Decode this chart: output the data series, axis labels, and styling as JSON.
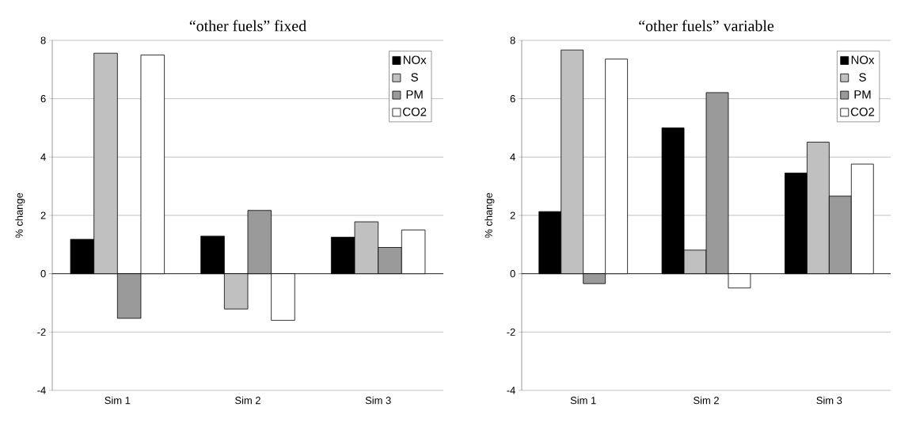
{
  "chart_data": [
    {
      "type": "bar",
      "title": "“other fuels” fixed",
      "ylabel": "% change",
      "categories": [
        "Sim 1",
        "Sim 2",
        "Sim 3"
      ],
      "series": [
        {
          "name": "NOx",
          "color": "#000000",
          "values": [
            1.18,
            1.29,
            1.25
          ]
        },
        {
          "name": "S",
          "color": "#c0c0c0",
          "values": [
            7.56,
            -1.21,
            1.78
          ]
        },
        {
          "name": "PM",
          "color": "#9a9a9a",
          "values": [
            -1.53,
            2.17,
            0.9
          ]
        },
        {
          "name": "CO2",
          "color": "#ffffff",
          "values": [
            7.5,
            -1.6,
            1.5
          ]
        }
      ],
      "ylim": [
        -4,
        8
      ],
      "yticks": [
        -4,
        -2,
        0,
        2,
        4,
        6,
        8
      ],
      "grid": "y",
      "legend": "top right"
    },
    {
      "type": "bar",
      "title": "“other fuels” variable",
      "ylabel": "% change",
      "categories": [
        "Sim 1",
        "Sim 2",
        "Sim 3"
      ],
      "series": [
        {
          "name": "NOx",
          "color": "#000000",
          "values": [
            2.13,
            5.0,
            3.45
          ]
        },
        {
          "name": "S",
          "color": "#c0c0c0",
          "values": [
            7.67,
            0.81,
            4.51
          ]
        },
        {
          "name": "PM",
          "color": "#9a9a9a",
          "values": [
            -0.34,
            6.21,
            2.66
          ]
        },
        {
          "name": "CO2",
          "color": "#ffffff",
          "values": [
            7.36,
            -0.49,
            3.76
          ]
        }
      ],
      "ylim": [
        -4,
        8
      ],
      "yticks": [
        -4,
        -2,
        0,
        2,
        4,
        6,
        8
      ],
      "grid": "y",
      "legend": "top right"
    }
  ]
}
